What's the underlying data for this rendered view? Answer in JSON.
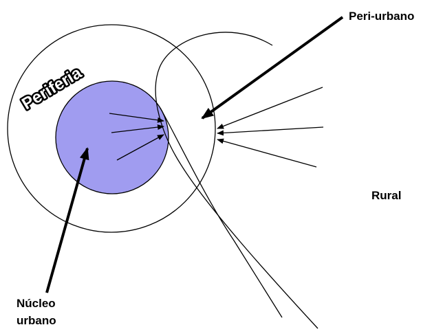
{
  "labels": {
    "periferia": "Periferia",
    "peri_urbano": "Peri-urbano",
    "rural": "Rural",
    "nucleo_line1": "Núcleo",
    "nucleo_line2": "urbano"
  },
  "colors": {
    "core_fill": "#a09cf0",
    "stroke": "#000000",
    "background": "#ffffff"
  }
}
